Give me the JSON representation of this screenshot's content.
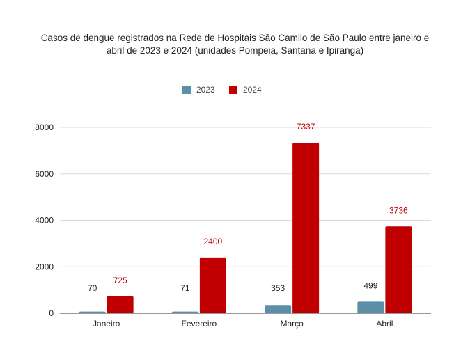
{
  "title_line1": "Casos de dengue registrados na Rede de Hospitais São Camilo de São Paulo entre janeiro e",
  "title_line2": "abril de 2023 e 2024 (unidades Pompeia, Santana e Ipiranga)",
  "colors": {
    "series_2023": "#5b8fa8",
    "series_2024": "#c00000",
    "label_2023": "#222222",
    "label_2024": "#c00000",
    "gridline": "#d9d9d9",
    "axis": "#333333"
  },
  "chart_data": {
    "type": "bar",
    "title": "Casos de dengue registrados na Rede de Hospitais São Camilo de São Paulo entre janeiro e abril de 2023 e 2024 (unidades Pompeia, Santana e Ipiranga)",
    "categories": [
      "Janeiro",
      "Fevereiro",
      "Março",
      "Abril"
    ],
    "series": [
      {
        "name": "2023",
        "values": [
          70,
          71,
          353,
          499
        ],
        "value_labels": [
          "70",
          "71",
          "353",
          "499"
        ]
      },
      {
        "name": "2024",
        "values": [
          725,
          2400,
          7337,
          3736
        ],
        "value_labels": [
          "725",
          "2400",
          "7337",
          "3736"
        ]
      }
    ],
    "xlabel": "",
    "ylabel": "",
    "ylim": [
      0,
      8000
    ],
    "yticks": [
      0,
      2000,
      4000,
      6000,
      8000
    ],
    "ytick_labels": [
      "0",
      "2000",
      "4000",
      "6000",
      "8000"
    ],
    "grid": true,
    "legend_position": "top-center"
  }
}
